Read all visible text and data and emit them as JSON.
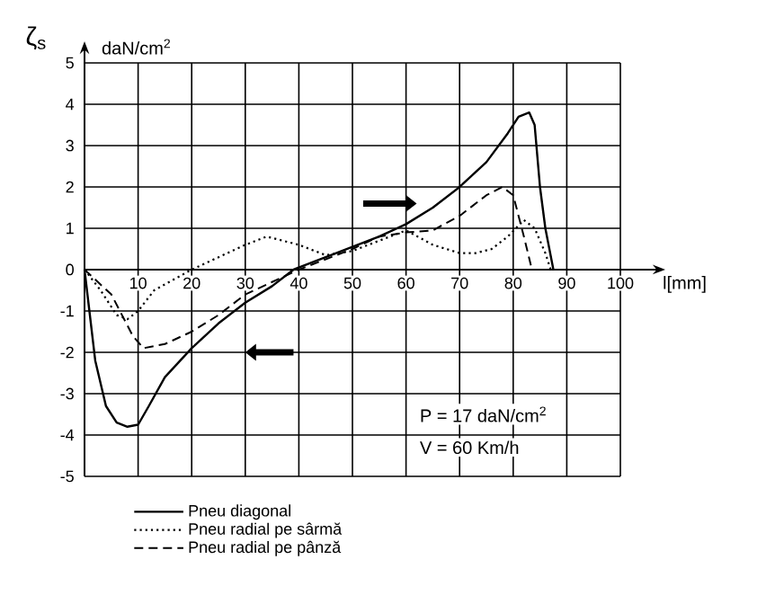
{
  "chart_data": {
    "type": "line",
    "xlabel": "l[mm]",
    "ylabel": "ζ$_{s}$",
    "annotations": [
      "daN/cm$^{2}$",
      "P = 17 daN/cm$^{2}$",
      "V = 60 Km/h"
    ],
    "xlim": [
      0,
      100
    ],
    "ylim": [
      -5,
      5
    ],
    "xticks": [
      10,
      20,
      30,
      40,
      50,
      60,
      70,
      80,
      90,
      100
    ],
    "yticks": [
      -5,
      -4,
      -3,
      -2,
      -1,
      0,
      1,
      2,
      3,
      4,
      5
    ],
    "grid": true,
    "legend": "bottom",
    "series": [
      {
        "name": "Pneu diagonal",
        "color": "#000000",
        "line_style": "solid",
        "x": [
          0,
          2,
          4,
          6,
          8,
          10,
          12,
          15,
          20,
          25,
          30,
          35,
          39,
          45,
          50,
          55,
          60,
          65,
          70,
          75,
          79,
          81,
          83,
          84,
          85,
          86,
          87.5
        ],
        "values": [
          0,
          -2.2,
          -3.3,
          -3.7,
          -3.8,
          -3.75,
          -3.3,
          -2.6,
          -1.9,
          -1.3,
          -0.8,
          -0.4,
          0,
          0.3,
          0.55,
          0.8,
          1.1,
          1.5,
          2.0,
          2.6,
          3.3,
          3.7,
          3.8,
          3.5,
          2.0,
          1.0,
          0
        ]
      },
      {
        "name": "Pneu radial pe sârmă",
        "color": "#000000",
        "line_style": "dotted",
        "x": [
          0,
          3,
          6,
          8,
          10,
          13,
          20,
          25,
          30,
          34,
          40,
          45,
          50,
          55,
          60,
          65,
          70,
          73,
          76,
          79,
          82,
          84,
          86,
          87
        ],
        "values": [
          0,
          -0.5,
          -1.1,
          -1.2,
          -1.0,
          -0.5,
          0,
          0.3,
          0.6,
          0.8,
          0.6,
          0.35,
          0.45,
          0.7,
          0.95,
          0.6,
          0.4,
          0.4,
          0.5,
          0.8,
          1.2,
          1.0,
          0.4,
          0
        ]
      },
      {
        "name": "Pneu radial pe pânză",
        "color": "#000000",
        "line_style": "dashed",
        "x": [
          0,
          5,
          9,
          11,
          15,
          20,
          25,
          30,
          35,
          40,
          50,
          55,
          60,
          65,
          70,
          75,
          78,
          80,
          82,
          83.5
        ],
        "values": [
          0,
          -0.6,
          -1.6,
          -1.9,
          -1.8,
          -1.5,
          -1.1,
          -0.6,
          -0.3,
          0,
          0.5,
          0.8,
          0.9,
          0.95,
          1.3,
          1.8,
          2.0,
          1.8,
          0.8,
          0
        ]
      }
    ]
  }
}
